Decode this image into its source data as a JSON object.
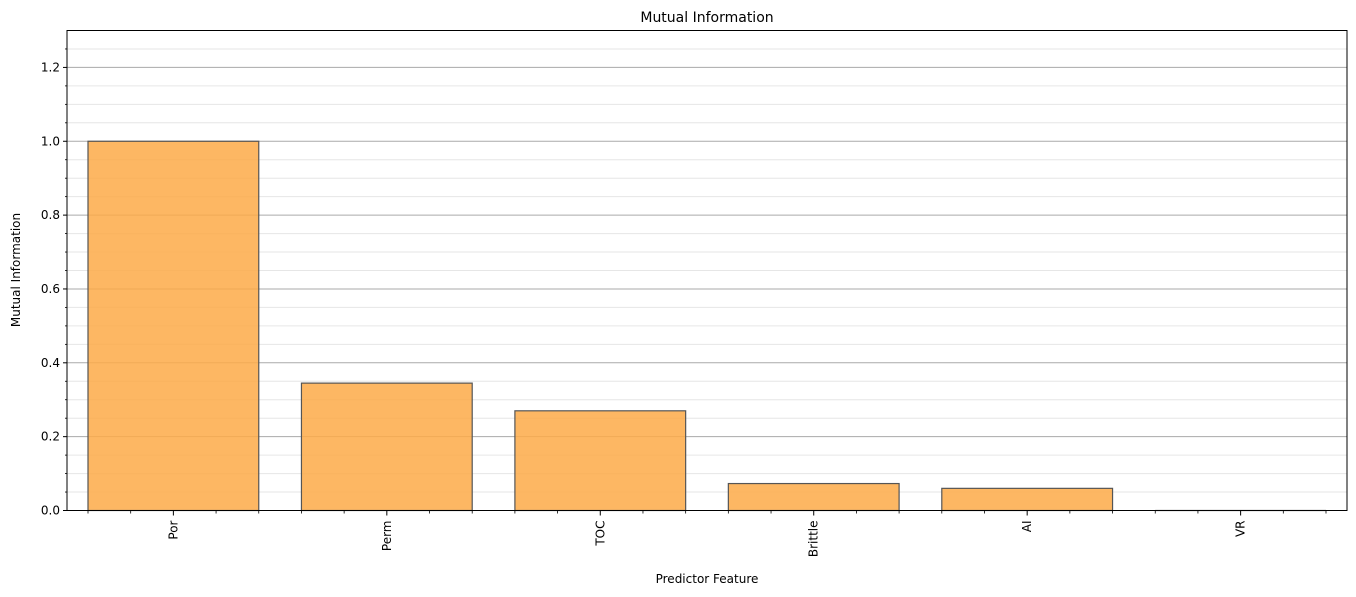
{
  "chart_data": {
    "type": "bar",
    "title": "Mutual Information",
    "xlabel": "Predictor Feature",
    "ylabel": "Mutual Information",
    "categories": [
      "Por",
      "Perm",
      "TOC",
      "Brittle",
      "AI",
      "VR"
    ],
    "values": [
      1.0,
      0.345,
      0.27,
      0.073,
      0.06,
      0.0
    ],
    "ylim": [
      0,
      1.3
    ],
    "yticks": [
      "0.0",
      "0.2",
      "0.4",
      "0.6",
      "0.8",
      "1.0",
      "1.2"
    ],
    "grid": {
      "major": true,
      "minor": true
    },
    "bar_color": "#fdaa48",
    "bar_edge_color": "#555555"
  }
}
